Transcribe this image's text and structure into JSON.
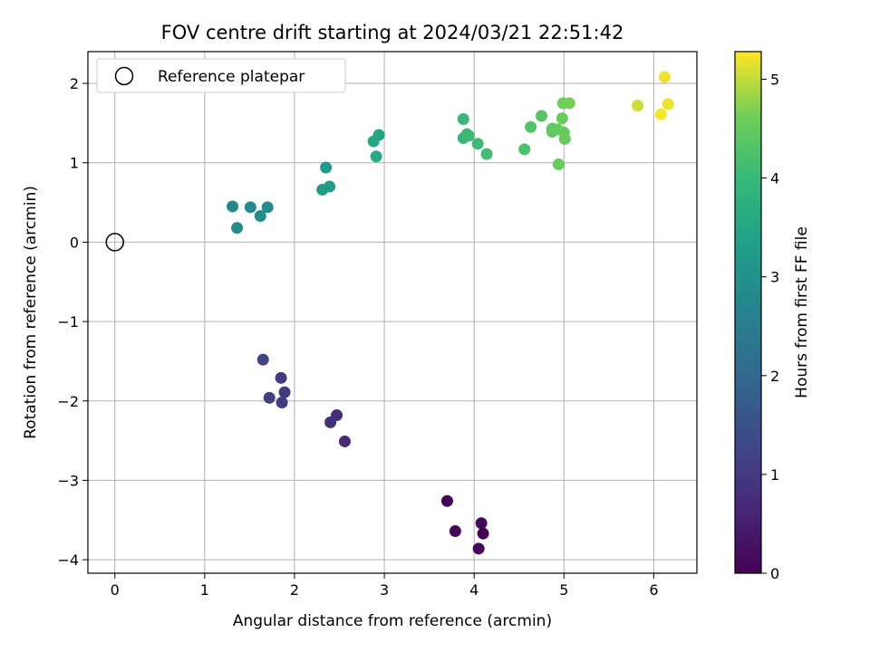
{
  "chart_data": {
    "type": "scatter",
    "title": "FOV centre drift starting at 2024/03/21 22:51:42",
    "xlabel": "Angular distance from reference (arcmin)",
    "ylabel": "Rotation from reference (arcmin)",
    "xlim": [
      -0.3,
      6.48
    ],
    "ylim": [
      -4.17,
      2.4
    ],
    "xticks": [
      0,
      1,
      2,
      3,
      4,
      5,
      6
    ],
    "xtick_labels": [
      "0",
      "1",
      "2",
      "3",
      "4",
      "5",
      "6"
    ],
    "yticks": [
      2,
      1,
      0,
      -1,
      -2,
      -3,
      -4
    ],
    "ytick_labels": [
      "2",
      "1",
      "0",
      "−1",
      "−2",
      "−3",
      "−4"
    ],
    "grid": true,
    "legend": {
      "placement": "top-left",
      "entries": [
        "Reference platepar"
      ]
    },
    "reference_point": {
      "x": 0,
      "y": 0,
      "marker": "open-circle",
      "edgecolor": "#000000"
    },
    "colorbar": {
      "label": "Hours from first FF file",
      "colormap": "viridis",
      "range": [
        0,
        5.28
      ],
      "ticks": [
        0,
        1,
        2,
        3,
        4,
        5
      ],
      "tick_labels": [
        "0",
        "1",
        "2",
        "3",
        "4",
        "5"
      ]
    },
    "points": [
      {
        "x": 3.7,
        "y": -3.26,
        "c": 0.05
      },
      {
        "x": 3.79,
        "y": -3.64,
        "c": 0.1
      },
      {
        "x": 4.08,
        "y": -3.54,
        "c": 0.15
      },
      {
        "x": 4.1,
        "y": -3.67,
        "c": 0.05
      },
      {
        "x": 4.05,
        "y": -3.86,
        "c": 0.1
      },
      {
        "x": 2.56,
        "y": -2.51,
        "c": 0.7
      },
      {
        "x": 2.47,
        "y": -2.18,
        "c": 0.75
      },
      {
        "x": 2.4,
        "y": -2.27,
        "c": 0.8
      },
      {
        "x": 1.65,
        "y": -1.48,
        "c": 1.2
      },
      {
        "x": 1.85,
        "y": -1.71,
        "c": 1.0
      },
      {
        "x": 1.89,
        "y": -1.89,
        "c": 1.0
      },
      {
        "x": 1.72,
        "y": -1.96,
        "c": 1.1
      },
      {
        "x": 1.86,
        "y": -2.02,
        "c": 1.05
      },
      {
        "x": 1.31,
        "y": 0.45,
        "c": 2.8
      },
      {
        "x": 1.51,
        "y": 0.44,
        "c": 2.85
      },
      {
        "x": 1.7,
        "y": 0.44,
        "c": 2.9
      },
      {
        "x": 1.62,
        "y": 0.33,
        "c": 2.9
      },
      {
        "x": 1.36,
        "y": 0.18,
        "c": 2.95
      },
      {
        "x": 2.35,
        "y": 0.94,
        "c": 3.2
      },
      {
        "x": 2.39,
        "y": 0.7,
        "c": 3.25
      },
      {
        "x": 2.31,
        "y": 0.66,
        "c": 3.25
      },
      {
        "x": 2.94,
        "y": 1.35,
        "c": 3.45
      },
      {
        "x": 2.88,
        "y": 1.27,
        "c": 3.5
      },
      {
        "x": 2.91,
        "y": 1.08,
        "c": 3.55
      },
      {
        "x": 3.88,
        "y": 1.55,
        "c": 3.95
      },
      {
        "x": 3.92,
        "y": 1.36,
        "c": 4.0
      },
      {
        "x": 3.88,
        "y": 1.31,
        "c": 4.0
      },
      {
        "x": 3.94,
        "y": 1.34,
        "c": 4.05
      },
      {
        "x": 4.04,
        "y": 1.24,
        "c": 4.05
      },
      {
        "x": 4.14,
        "y": 1.11,
        "c": 4.1
      },
      {
        "x": 4.56,
        "y": 1.17,
        "c": 4.25
      },
      {
        "x": 4.63,
        "y": 1.45,
        "c": 4.3
      },
      {
        "x": 4.75,
        "y": 1.59,
        "c": 4.35
      },
      {
        "x": 4.87,
        "y": 1.43,
        "c": 4.4
      },
      {
        "x": 4.87,
        "y": 1.39,
        "c": 4.45
      },
      {
        "x": 4.94,
        "y": 0.98,
        "c": 4.55
      },
      {
        "x": 4.98,
        "y": 1.56,
        "c": 4.55
      },
      {
        "x": 5.0,
        "y": 1.38,
        "c": 4.5
      },
      {
        "x": 5.01,
        "y": 1.3,
        "c": 4.55
      },
      {
        "x": 4.93,
        "y": 1.42,
        "c": 4.5
      },
      {
        "x": 4.99,
        "y": 1.75,
        "c": 4.6
      },
      {
        "x": 5.06,
        "y": 1.75,
        "c": 4.65
      },
      {
        "x": 5.82,
        "y": 1.72,
        "c": 5.05
      },
      {
        "x": 6.12,
        "y": 2.08,
        "c": 5.2
      },
      {
        "x": 6.16,
        "y": 1.74,
        "c": 5.2
      },
      {
        "x": 6.08,
        "y": 1.61,
        "c": 5.25
      }
    ]
  }
}
